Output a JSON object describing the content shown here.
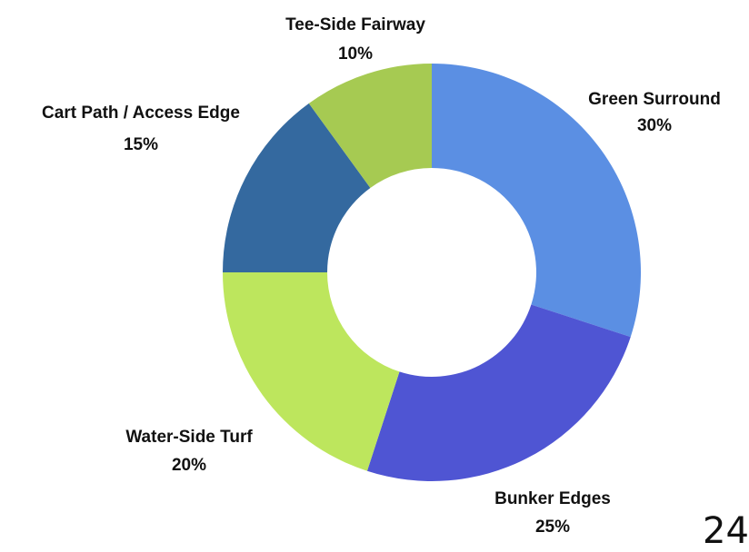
{
  "chart_data": {
    "type": "pie",
    "variant": "donut",
    "title": "",
    "start_angle_deg": 0,
    "direction": "clockwise",
    "slices": [
      {
        "label": "Green Surround",
        "value": 30,
        "value_label": "30%",
        "color": "#5b8fe3"
      },
      {
        "label": "Bunker Edges",
        "value": 25,
        "value_label": "25%",
        "color": "#4f55d3"
      },
      {
        "label": "Water-Side Turf",
        "value": 20,
        "value_label": "20%",
        "color": "#bde65d"
      },
      {
        "label": "Cart Path / Access Edge",
        "value": 15,
        "value_label": "15%",
        "color": "#34699f"
      },
      {
        "label": "Tee-Side Fairway",
        "value": 10,
        "value_label": "10%",
        "color": "#a6ca52"
      }
    ]
  },
  "corner_text": "24"
}
